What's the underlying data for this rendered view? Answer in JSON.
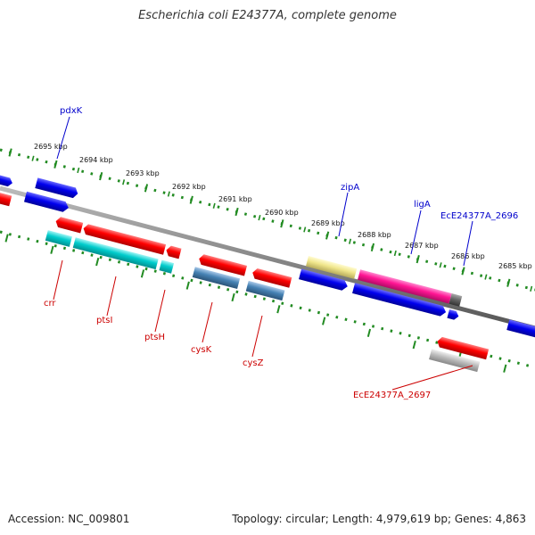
{
  "title": "Escherichia coli E24377A, complete genome",
  "footer": {
    "accession": "Accession: NC_009801",
    "summary": "Topology: circular; Length: 4,979,619 bp; Genes: 4,863"
  },
  "ruler": {
    "ticks": [
      "2695 kbp",
      "2694 kbp",
      "2693 kbp",
      "2692 kbp",
      "2691 kbp",
      "2690 kbp",
      "2689 kbp",
      "2688 kbp",
      "2687 kbp",
      "2686 kbp",
      "2685 kbp"
    ]
  },
  "genes_forward": [
    {
      "name": "pdxK",
      "color": "#0000ee"
    },
    {
      "name": "zipA",
      "color": "#f0e68c"
    },
    {
      "name": "ligA",
      "color": "#ff1493"
    },
    {
      "name": "EcE24377A_2696",
      "color": "#0000ee"
    }
  ],
  "genes_reverse": [
    {
      "name": "crr",
      "color": "#00cccc"
    },
    {
      "name": "ptsI",
      "color": "#00cccc"
    },
    {
      "name": "ptsH",
      "color": "#00cccc"
    },
    {
      "name": "cysK",
      "color": "#4682b4"
    },
    {
      "name": "cysZ",
      "color": "#4682b4"
    },
    {
      "name": "EcE24377A_2697",
      "color": "#bbbbbb"
    }
  ],
  "colors": {
    "forward_label": "#0000cc",
    "reverse_label": "#cc0000",
    "backbone": "#888888",
    "dots": "#228b22",
    "forward_cds": "#ff0000"
  }
}
